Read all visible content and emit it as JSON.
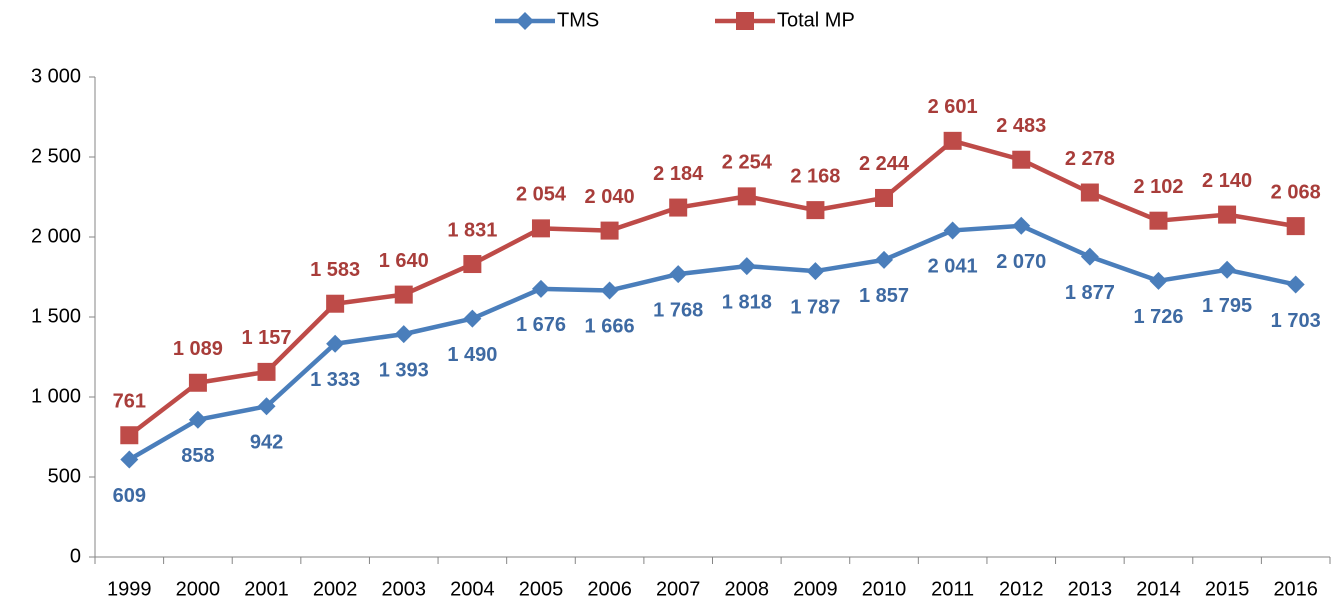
{
  "chart_data": {
    "type": "line",
    "categories": [
      "1999",
      "2000",
      "2001",
      "2002",
      "2003",
      "2004",
      "2005",
      "2006",
      "2007",
      "2008",
      "2009",
      "2010",
      "2011",
      "2012",
      "2013",
      "2014",
      "2015",
      "2016"
    ],
    "series": [
      {
        "name": "TMS",
        "color": "#4a7ebb",
        "label_color": "#3e6aa3",
        "marker": "diamond",
        "values": [
          609,
          858,
          942,
          1333,
          1393,
          1490,
          1676,
          1666,
          1768,
          1818,
          1787,
          1857,
          2041,
          2070,
          1877,
          1726,
          1795,
          1703
        ],
        "value_labels": [
          "609",
          "858",
          "942",
          "1 333",
          "1 393",
          "1 490",
          "1 676",
          "1 666",
          "1 768",
          "1 818",
          "1 787",
          "1 857",
          "2 041",
          "2 070",
          "1 877",
          "1 726",
          "1 795",
          "1 703"
        ]
      },
      {
        "name": "Total MP",
        "color": "#be4b48",
        "label_color": "#a83d3a",
        "marker": "square",
        "values": [
          761,
          1089,
          1157,
          1583,
          1640,
          1831,
          2054,
          2040,
          2184,
          2254,
          2168,
          2244,
          2601,
          2483,
          2278,
          2102,
          2140,
          2068
        ],
        "value_labels": [
          "761",
          "1 089",
          "1 157",
          "1 583",
          "1 640",
          "1 831",
          "2 054",
          "2 040",
          "2 184",
          "2 254",
          "2 168",
          "2 244",
          "2 601",
          "2 483",
          "2 278",
          "2 102",
          "2 140",
          "2 068"
        ]
      }
    ],
    "ylim": [
      0,
      3000
    ],
    "yticks": [
      0,
      500,
      {
        "value": 1000,
        "label": "1 000"
      },
      {
        "value": 1500,
        "label": "1 500"
      },
      {
        "value": 2000,
        "label": "2 000"
      },
      {
        "value": 2500,
        "label": "2 500"
      },
      {
        "value": 3000,
        "label": "3 000"
      }
    ],
    "grid": false,
    "legend": "top"
  }
}
